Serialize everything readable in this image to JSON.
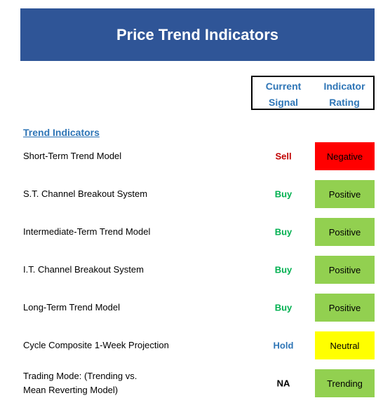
{
  "header": {
    "title": "Price Trend Indicators"
  },
  "columns": {
    "signal": "Current\nSignal",
    "rating": "Indicator\nRating"
  },
  "section": {
    "title": "Trend Indicators"
  },
  "rows": [
    {
      "label": "Short-Term Trend Model",
      "signal": "Sell",
      "signal_color": "#c00000",
      "rating": "Negative",
      "rating_color": "#ff0000"
    },
    {
      "label": "S.T. Channel Breakout System",
      "signal": "Buy",
      "signal_color": "#00b050",
      "rating": "Positive",
      "rating_color": "#92d050"
    },
    {
      "label": "Intermediate-Term Trend Model",
      "signal": "Buy",
      "signal_color": "#00b050",
      "rating": "Positive",
      "rating_color": "#92d050"
    },
    {
      "label": "I.T. Channel Breakout System",
      "signal": "Buy",
      "signal_color": "#00b050",
      "rating": "Positive",
      "rating_color": "#92d050"
    },
    {
      "label": "Long-Term Trend Model",
      "signal": "Buy",
      "signal_color": "#00b050",
      "rating": "Positive",
      "rating_color": "#92d050"
    },
    {
      "label": "Cycle Composite 1-Week Projection",
      "signal": "Hold",
      "signal_color": "#2e75b6",
      "rating": "Neutral",
      "rating_color": "#ffff00"
    },
    {
      "label": "Trading Mode: (Trending vs.\nMean Reverting Model)",
      "signal": "NA",
      "signal_color": "#000000",
      "rating": "Trending",
      "rating_color": "#92d050"
    }
  ]
}
